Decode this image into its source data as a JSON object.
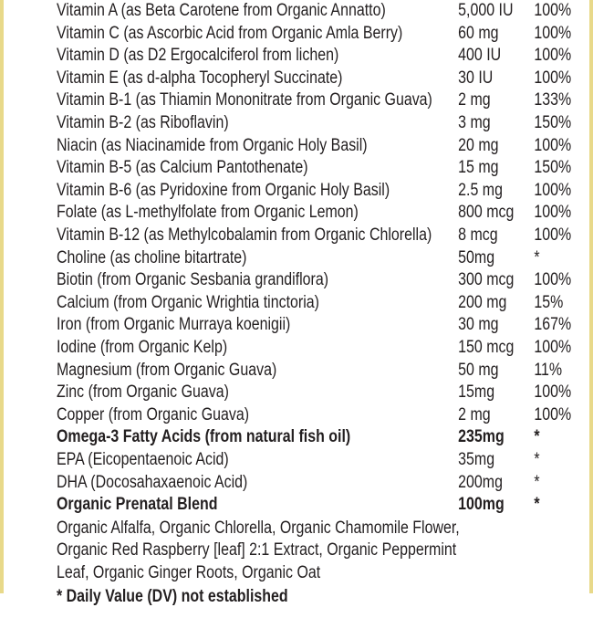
{
  "rows": [
    {
      "name": "Vitamin A (as Beta Carotene from Organic Annatto)",
      "amount": "5,000 IU",
      "dv": "100%"
    },
    {
      "name": "Vitamin C (as Ascorbic Acid from Organic Amla Berry)",
      "amount": "60 mg",
      "dv": "100%"
    },
    {
      "name": "Vitamin D (as D2 Ergocalciferol from lichen)",
      "amount": "400 IU",
      "dv": "100%"
    },
    {
      "name": "Vitamin E (as d-alpha Tocopheryl Succinate)",
      "amount": "30 IU",
      "dv": "100%"
    },
    {
      "name": "Vitamin B-1 (as Thiamin Mononitrate from Organic Guava)",
      "amount": "2 mg",
      "dv": "133%"
    },
    {
      "name": "Vitamin B-2 (as Riboflavin)",
      "amount": "3 mg",
      "dv": "150%"
    },
    {
      "name": "Niacin (as Niacinamide from Organic Holy Basil)",
      "amount": "20 mg",
      "dv": "100%"
    },
    {
      "name": "Vitamin B-5 (as Calcium Pantothenate)",
      "amount": "15 mg",
      "dv": "150%"
    },
    {
      "name": "Vitamin B-6 (as Pyridoxine from Organic Holy Basil)",
      "amount": "2.5 mg",
      "dv": "100%"
    },
    {
      "name": "Folate (as L-methylfolate from Organic Lemon)",
      "amount": "800 mcg",
      "dv": "100%"
    },
    {
      "name": "Vitamin B-12 (as Methylcobalamin from Organic Chlorella)",
      "amount": "8 mcg",
      "dv": "100%"
    },
    {
      "name": "Choline (as choline bitartrate)",
      "amount": "50mg",
      "dv": "*"
    },
    {
      "name": "Biotin (from Organic Sesbania grandiflora)",
      "amount": "300 mcg",
      "dv": "100%"
    },
    {
      "name": "Calcium (from Organic Wrightia tinctoria)",
      "amount": "200 mg",
      "dv": "15%"
    },
    {
      "name": "Iron (from Organic Murraya koenigii)",
      "amount": "30 mg",
      "dv": "167%"
    },
    {
      "name": "Iodine (from Organic Kelp)",
      "amount": "150 mcg",
      "dv": "100%"
    },
    {
      "name": "Magnesium (from Organic Guava)",
      "amount": "50 mg",
      "dv": "11%"
    },
    {
      "name": "Zinc (from Organic Guava)",
      "amount": "15mg",
      "dv": "100%"
    },
    {
      "name": "Copper (from Organic Guava)",
      "amount": "2 mg",
      "dv": "100%"
    },
    {
      "name": "Omega-3 Fatty Acids (from natural fish oil)",
      "amount": "235mg",
      "dv": "*",
      "bold": true
    },
    {
      "name": "EPA (Eicopentaenoic Acid)",
      "amount": "35mg",
      "dv": "*"
    },
    {
      "name": "DHA (Docosahaxaenoic Acid)",
      "amount": "200mg",
      "dv": "*"
    },
    {
      "name": "Organic Prenatal Blend",
      "amount": "100mg",
      "dv": "*",
      "bold": true
    }
  ],
  "blend_lines": [
    "Organic Alfalfa, Organic Chlorella, Organic Chamomile Flower,",
    "Organic Red Raspberry [leaf] 2:1 Extract, Organic Peppermint",
    "Leaf, Organic Ginger Roots, Organic Oat"
  ],
  "footnote": "* Daily Value (DV) not established",
  "colors": {
    "border": "#e8d98a",
    "text": "#231f20"
  }
}
